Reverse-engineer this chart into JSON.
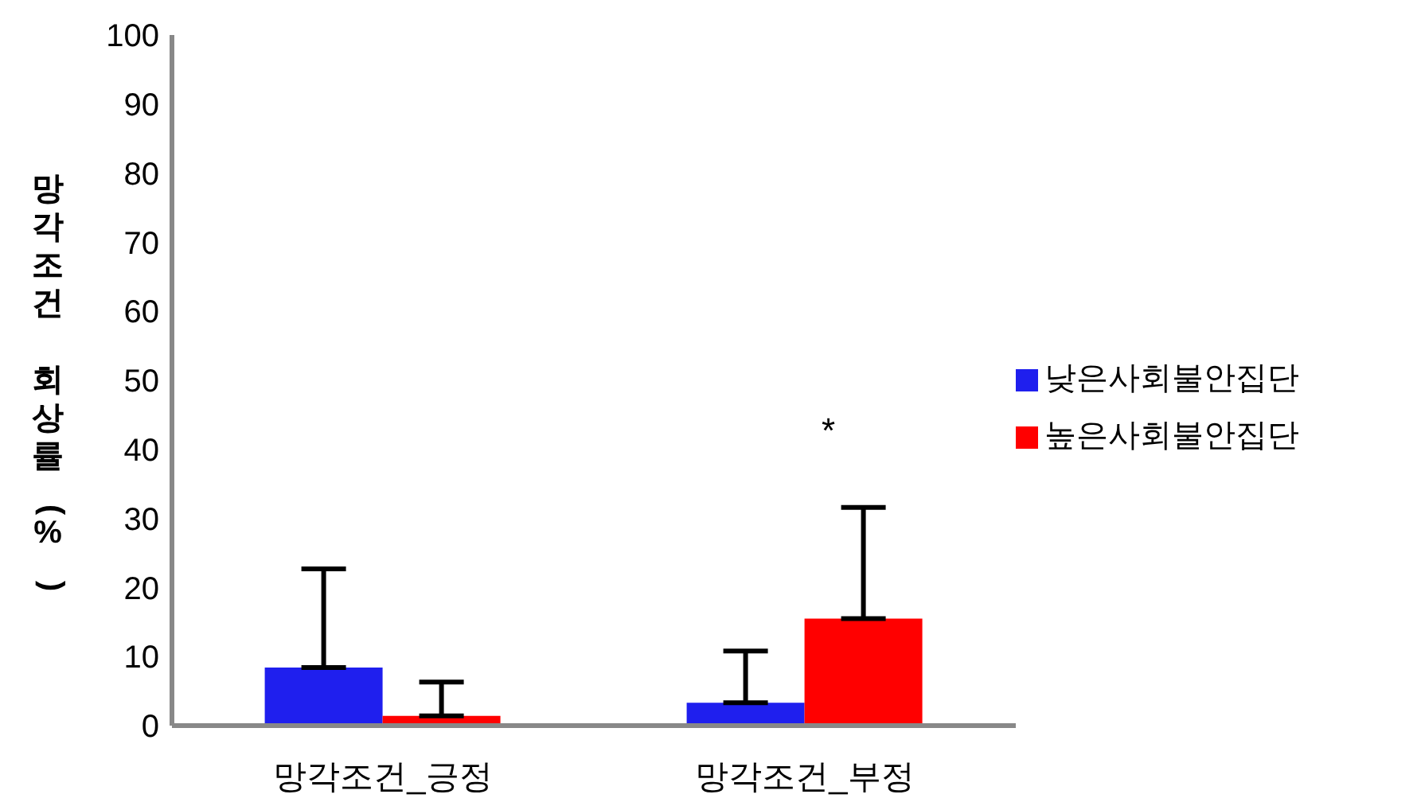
{
  "chart_data": {
    "type": "bar",
    "ylabel": "망각조건 회상률(%)",
    "categories": [
      "망각조건_긍정",
      "망각조건_부정"
    ],
    "series": [
      {
        "name": "낮은사회불안집단",
        "color": "#1f1fee",
        "values": [
          8.4,
          3.3
        ],
        "errors": [
          [
            8.4,
            22.7
          ],
          [
            3.3,
            10.8
          ]
        ]
      },
      {
        "name": "높은사회불안집단",
        "color": "#ff0000",
        "values": [
          1.4,
          15.5
        ],
        "errors": [
          [
            1.4,
            6.3
          ],
          [
            15.5,
            31.6
          ]
        ]
      }
    ],
    "ylim": [
      0,
      100
    ],
    "yticks": [
      0,
      10,
      20,
      30,
      40,
      50,
      60,
      70,
      80,
      90,
      100
    ],
    "grid": false,
    "legend": "right",
    "annotations": [
      "*"
    ]
  }
}
